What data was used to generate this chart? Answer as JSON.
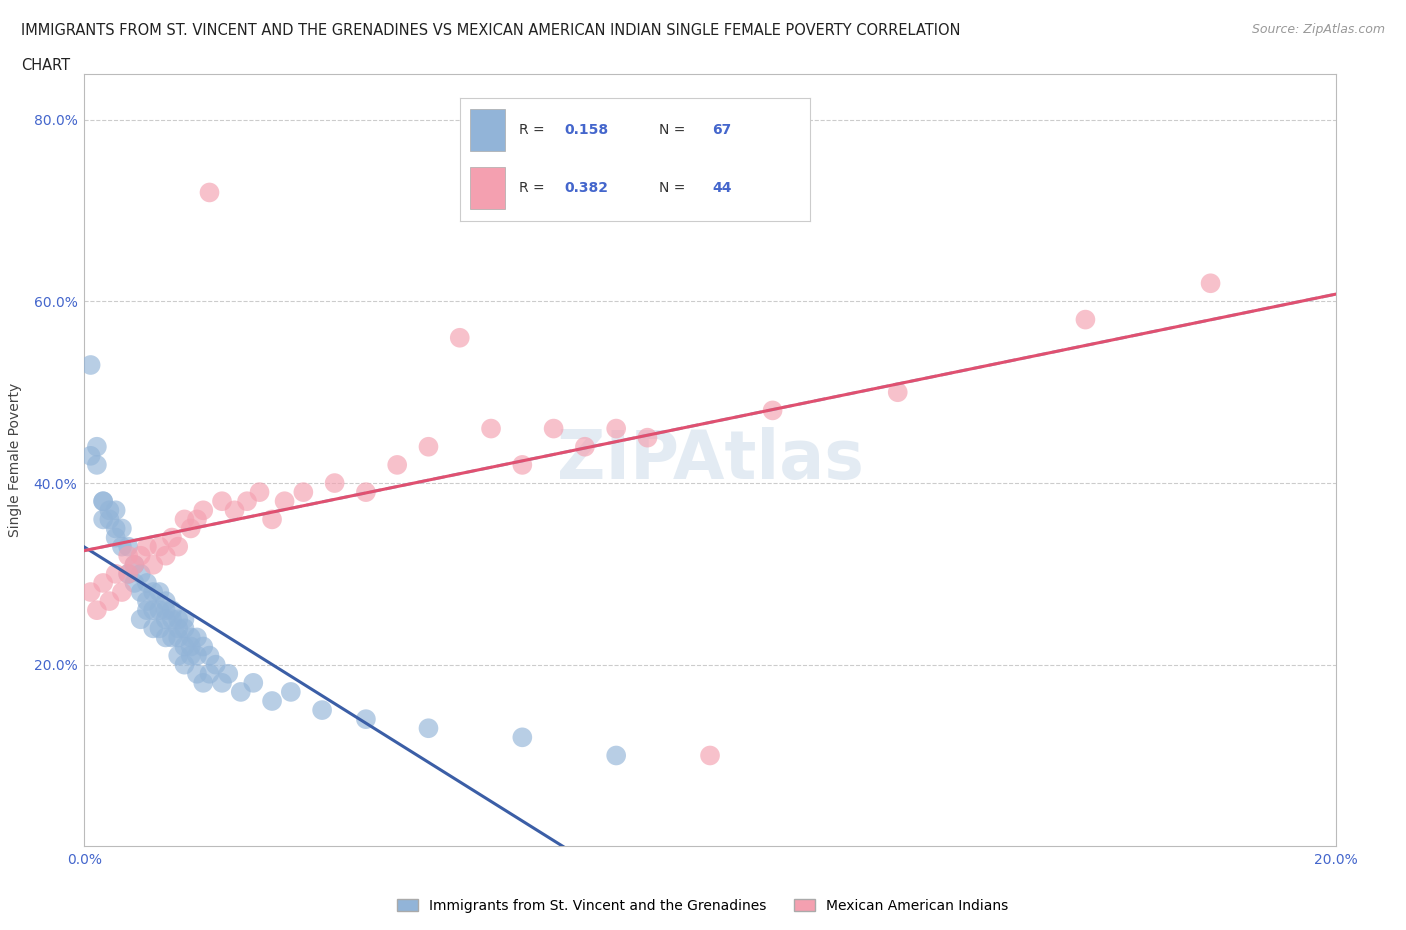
{
  "title_line1": "IMMIGRANTS FROM ST. VINCENT AND THE GRENADINES VS MEXICAN AMERICAN INDIAN SINGLE FEMALE POVERTY CORRELATION",
  "title_line2": "CHART",
  "source": "Source: ZipAtlas.com",
  "ylabel": "Single Female Poverty",
  "x_min": 0.0,
  "x_max": 0.2,
  "y_min": 0.0,
  "y_max": 0.85,
  "blue_color": "#92B4D8",
  "pink_color": "#F4A0B0",
  "blue_line_color": "#3B5EA6",
  "pink_line_color": "#E05070",
  "blue_dashed_color": "#9BB8D4",
  "watermark_color": "#C8D8E8",
  "axis_color": "#BBBBBB",
  "grid_color": "#CCCCCC",
  "blue_scatter_x": [
    0.001,
    0.001,
    0.002,
    0.002,
    0.003,
    0.003,
    0.003,
    0.004,
    0.004,
    0.005,
    0.005,
    0.005,
    0.006,
    0.006,
    0.007,
    0.007,
    0.008,
    0.008,
    0.009,
    0.009,
    0.009,
    0.01,
    0.01,
    0.01,
    0.011,
    0.011,
    0.011,
    0.012,
    0.012,
    0.012,
    0.013,
    0.013,
    0.013,
    0.013,
    0.014,
    0.014,
    0.014,
    0.015,
    0.015,
    0.015,
    0.015,
    0.016,
    0.016,
    0.016,
    0.016,
    0.017,
    0.017,
    0.017,
    0.018,
    0.018,
    0.018,
    0.019,
    0.019,
    0.02,
    0.02,
    0.021,
    0.022,
    0.023,
    0.025,
    0.027,
    0.03,
    0.033,
    0.038,
    0.045,
    0.055,
    0.07,
    0.085
  ],
  "blue_scatter_y": [
    0.53,
    0.43,
    0.44,
    0.42,
    0.38,
    0.38,
    0.36,
    0.37,
    0.36,
    0.37,
    0.35,
    0.34,
    0.35,
    0.33,
    0.33,
    0.3,
    0.31,
    0.29,
    0.3,
    0.28,
    0.25,
    0.29,
    0.27,
    0.26,
    0.28,
    0.26,
    0.24,
    0.28,
    0.26,
    0.24,
    0.27,
    0.26,
    0.25,
    0.23,
    0.26,
    0.25,
    0.23,
    0.25,
    0.24,
    0.23,
    0.21,
    0.25,
    0.24,
    0.22,
    0.2,
    0.23,
    0.22,
    0.21,
    0.23,
    0.21,
    0.19,
    0.22,
    0.18,
    0.21,
    0.19,
    0.2,
    0.18,
    0.19,
    0.17,
    0.18,
    0.16,
    0.17,
    0.15,
    0.14,
    0.13,
    0.12,
    0.1
  ],
  "pink_scatter_x": [
    0.001,
    0.002,
    0.003,
    0.004,
    0.005,
    0.006,
    0.007,
    0.007,
    0.008,
    0.009,
    0.01,
    0.011,
    0.012,
    0.013,
    0.014,
    0.015,
    0.016,
    0.017,
    0.018,
    0.019,
    0.02,
    0.022,
    0.024,
    0.026,
    0.028,
    0.03,
    0.032,
    0.035,
    0.04,
    0.045,
    0.05,
    0.055,
    0.06,
    0.065,
    0.07,
    0.075,
    0.08,
    0.085,
    0.09,
    0.1,
    0.11,
    0.13,
    0.16,
    0.18
  ],
  "pink_scatter_y": [
    0.28,
    0.26,
    0.29,
    0.27,
    0.3,
    0.28,
    0.3,
    0.32,
    0.31,
    0.32,
    0.33,
    0.31,
    0.33,
    0.32,
    0.34,
    0.33,
    0.36,
    0.35,
    0.36,
    0.37,
    0.72,
    0.38,
    0.37,
    0.38,
    0.39,
    0.36,
    0.38,
    0.39,
    0.4,
    0.39,
    0.42,
    0.44,
    0.56,
    0.46,
    0.42,
    0.46,
    0.44,
    0.46,
    0.45,
    0.1,
    0.48,
    0.5,
    0.58,
    0.62
  ],
  "legend_R1": "0.158",
  "legend_N1": "67",
  "legend_R2": "0.382",
  "legend_N2": "44"
}
